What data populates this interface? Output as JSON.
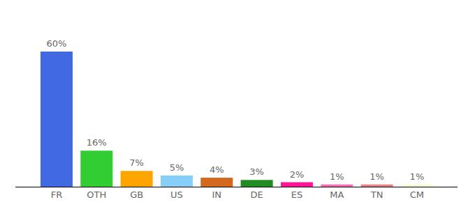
{
  "chart_data": {
    "type": "bar",
    "categories": [
      "FR",
      "OTH",
      "GB",
      "US",
      "IN",
      "DE",
      "ES",
      "MA",
      "TN",
      "CM"
    ],
    "values": [
      60,
      16,
      7,
      5,
      4,
      3,
      2,
      1,
      1,
      1
    ],
    "value_labels": [
      "60%",
      "16%",
      "7%",
      "5%",
      "4%",
      "3%",
      "2%",
      "1%",
      "1%",
      "1%"
    ],
    "colors": [
      "#4169e1",
      "#32cd32",
      "#ffa500",
      "#87cefa",
      "#d2691e",
      "#228b22",
      "#ff1493",
      "#ff69b4",
      "#f08080",
      "#fafad2"
    ],
    "ylim": [
      0,
      60
    ],
    "data_labels": true,
    "tick_labels": "x",
    "grid": false
  }
}
